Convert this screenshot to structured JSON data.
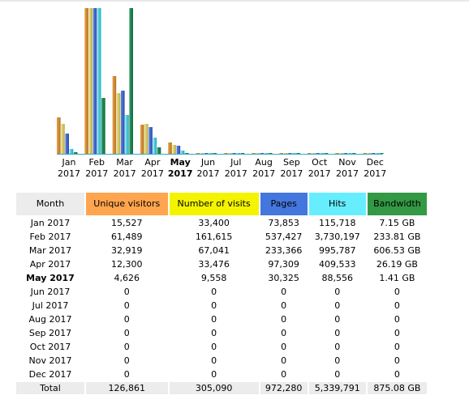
{
  "colors": {
    "unique_visitors": "#ffa54f",
    "number_of_visits": "#f4f400",
    "pages": "#4477dd",
    "hits": "#66eeff",
    "bandwidth": "#339944",
    "header_gray": "#ececec"
  },
  "chart_data": {
    "type": "bar",
    "categories": [
      "Jan 2017",
      "Feb 2017",
      "Mar 2017",
      "Apr 2017",
      "May 2017",
      "Jun 2017",
      "Jul 2017",
      "Aug 2017",
      "Sep 2017",
      "Oct 2017",
      "Nov 2017",
      "Dec 2017"
    ],
    "current_index": 4,
    "series": [
      {
        "key": "uv",
        "values": [
          15527,
          61489,
          32919,
          12300,
          4626,
          0,
          0,
          0,
          0,
          0,
          0,
          0
        ]
      },
      {
        "key": "nv",
        "values": [
          33400,
          161615,
          67041,
          33476,
          9558,
          0,
          0,
          0,
          0,
          0,
          0,
          0
        ]
      },
      {
        "key": "pg",
        "values": [
          73853,
          537427,
          233366,
          97309,
          30325,
          0,
          0,
          0,
          0,
          0,
          0,
          0
        ]
      },
      {
        "key": "ht",
        "values": [
          115718,
          3730197,
          995787,
          409533,
          88556,
          0,
          0,
          0,
          0,
          0,
          0,
          0
        ]
      },
      {
        "key": "bw",
        "values": [
          7.15,
          233.81,
          606.53,
          26.19,
          1.41,
          0,
          0,
          0,
          0,
          0,
          0,
          0
        ]
      }
    ]
  },
  "months": [
    {
      "m": "Jan",
      "y": "2017"
    },
    {
      "m": "Feb",
      "y": "2017"
    },
    {
      "m": "Mar",
      "y": "2017"
    },
    {
      "m": "Apr",
      "y": "2017"
    },
    {
      "m": "May",
      "y": "2017"
    },
    {
      "m": "Jun",
      "y": "2017"
    },
    {
      "m": "Jul",
      "y": "2017"
    },
    {
      "m": "Aug",
      "y": "2017"
    },
    {
      "m": "Sep",
      "y": "2017"
    },
    {
      "m": "Oct",
      "y": "2017"
    },
    {
      "m": "Nov",
      "y": "2017"
    },
    {
      "m": "Dec",
      "y": "2017"
    }
  ],
  "table": {
    "headers": {
      "month": "Month",
      "uv": "Unique visitors",
      "nv": "Number of visits",
      "pages": "Pages",
      "hits": "Hits",
      "bandwidth": "Bandwidth"
    },
    "rows": [
      {
        "month": "Jan 2017",
        "uv": "15,527",
        "nv": "33,400",
        "pages": "73,853",
        "hits": "115,718",
        "bw": "7.15 GB"
      },
      {
        "month": "Feb 2017",
        "uv": "61,489",
        "nv": "161,615",
        "pages": "537,427",
        "hits": "3,730,197",
        "bw": "233.81 GB"
      },
      {
        "month": "Mar 2017",
        "uv": "32,919",
        "nv": "67,041",
        "pages": "233,366",
        "hits": "995,787",
        "bw": "606.53 GB"
      },
      {
        "month": "Apr 2017",
        "uv": "12,300",
        "nv": "33,476",
        "pages": "97,309",
        "hits": "409,533",
        "bw": "26.19 GB"
      },
      {
        "month": "May 2017",
        "uv": "4,626",
        "nv": "9,558",
        "pages": "30,325",
        "hits": "88,556",
        "bw": "1.41 GB"
      },
      {
        "month": "Jun 2017",
        "uv": "0",
        "nv": "0",
        "pages": "0",
        "hits": "0",
        "bw": "0"
      },
      {
        "month": "Jul 2017",
        "uv": "0",
        "nv": "0",
        "pages": "0",
        "hits": "0",
        "bw": "0"
      },
      {
        "month": "Aug 2017",
        "uv": "0",
        "nv": "0",
        "pages": "0",
        "hits": "0",
        "bw": "0"
      },
      {
        "month": "Sep 2017",
        "uv": "0",
        "nv": "0",
        "pages": "0",
        "hits": "0",
        "bw": "0"
      },
      {
        "month": "Oct 2017",
        "uv": "0",
        "nv": "0",
        "pages": "0",
        "hits": "0",
        "bw": "0"
      },
      {
        "month": "Nov 2017",
        "uv": "0",
        "nv": "0",
        "pages": "0",
        "hits": "0",
        "bw": "0"
      },
      {
        "month": "Dec 2017",
        "uv": "0",
        "nv": "0",
        "pages": "0",
        "hits": "0",
        "bw": "0"
      }
    ],
    "total": {
      "month": "Total",
      "uv": "126,861",
      "nv": "305,090",
      "pages": "972,280",
      "hits": "5,339,791",
      "bw": "875.08 GB"
    }
  }
}
